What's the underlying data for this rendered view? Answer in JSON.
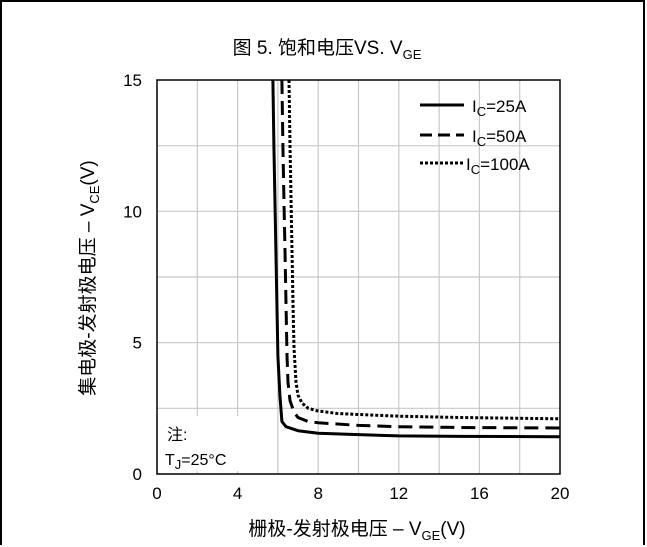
{
  "chart_data": {
    "type": "line",
    "title": {
      "main": "图 5. 饱和电压VS. V",
      "sub": "GE"
    },
    "xlabel": {
      "main": "栅极-发射极电压 – V",
      "sub": "GE",
      "tail": "(V)"
    },
    "ylabel": {
      "main": "集电极-发射极电压 – V",
      "sub": "CE",
      "tail": "(V)"
    },
    "xlim": [
      0,
      20
    ],
    "ylim": [
      0,
      15
    ],
    "xticks": [
      0,
      4,
      8,
      12,
      16,
      20
    ],
    "yticks": [
      0,
      5,
      10,
      15
    ],
    "grid": true,
    "legend_position": "top-right",
    "series": [
      {
        "name": {
          "pre": "I",
          "sub": "C",
          "post": "=25A"
        },
        "style": "solid",
        "x": [
          5.75,
          5.8,
          5.85,
          5.9,
          5.95,
          6.0,
          6.1,
          6.2,
          6.4,
          7.0,
          8.0,
          10.0,
          12.0,
          15.0,
          20.0
        ],
        "y": [
          15.0,
          12.5,
          10.5,
          8.5,
          6.5,
          4.5,
          3.0,
          2.0,
          1.8,
          1.65,
          1.55,
          1.5,
          1.45,
          1.43,
          1.42
        ]
      },
      {
        "name": {
          "pre": "I",
          "sub": "C",
          "post": "=50A"
        },
        "style": "dashed",
        "x": [
          6.2,
          6.25,
          6.3,
          6.35,
          6.4,
          6.45,
          6.5,
          6.6,
          6.8,
          7.0,
          7.5,
          8.0,
          10.0,
          12.0,
          15.0,
          20.0
        ],
        "y": [
          15.0,
          12.5,
          10.5,
          8.5,
          6.5,
          4.5,
          3.5,
          2.8,
          2.35,
          2.15,
          2.0,
          1.95,
          1.85,
          1.8,
          1.77,
          1.75
        ]
      },
      {
        "name": {
          "pre": "I",
          "sub": "C",
          "post": "=100A"
        },
        "style": "dotted",
        "x": [
          6.55,
          6.6,
          6.65,
          6.7,
          6.75,
          6.8,
          6.9,
          7.0,
          7.2,
          7.5,
          8.0,
          9.0,
          12.0,
          15.0,
          20.0
        ],
        "y": [
          15.0,
          12.5,
          10.5,
          8.5,
          6.5,
          4.8,
          3.5,
          3.0,
          2.7,
          2.5,
          2.4,
          2.3,
          2.2,
          2.15,
          2.1
        ]
      }
    ],
    "annotation": {
      "line1": "注:",
      "line2_pre": "T",
      "line2_sub": "J",
      "line2_post": "=25°C"
    }
  }
}
